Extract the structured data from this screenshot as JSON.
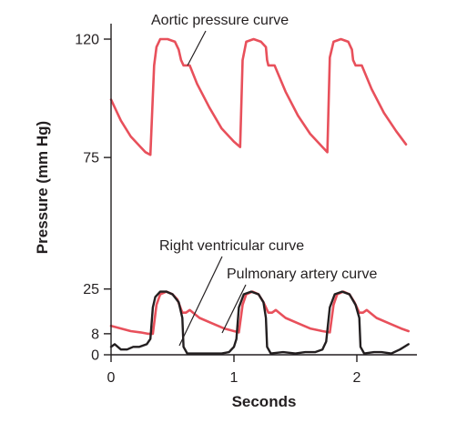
{
  "chart_data": {
    "type": "line",
    "xlabel": "Seconds",
    "ylabel": "Pressure (mm Hg)",
    "xlim": [
      0,
      2.5
    ],
    "ylim": [
      0,
      128
    ],
    "x_ticks": [
      0,
      1,
      2
    ],
    "x_tick_labels": [
      "0",
      "1",
      "2"
    ],
    "y_ticks": [
      0,
      8,
      25,
      75,
      120
    ],
    "y_tick_labels": [
      "0",
      "8",
      "25",
      "75",
      "120"
    ],
    "grid": false,
    "colors": {
      "aortic": "#e8505b",
      "pulmonary": "#e8505b",
      "ventricular": "#231f20",
      "axis": "#231f20"
    },
    "series": [
      {
        "name": "Aortic pressure curve",
        "x": [
          0.0,
          0.08,
          0.16,
          0.24,
          0.28,
          0.32,
          0.35,
          0.37,
          0.4,
          0.46,
          0.52,
          0.55,
          0.57,
          0.59,
          0.62,
          0.64,
          0.7,
          0.8,
          0.9,
          1.0,
          1.05,
          1.07,
          1.1,
          1.16,
          1.22,
          1.26,
          1.27,
          1.28,
          1.31,
          1.33,
          1.42,
          1.52,
          1.62,
          1.72,
          1.76,
          1.78,
          1.81,
          1.87,
          1.93,
          1.96,
          1.97,
          1.99,
          2.02,
          2.04,
          2.12,
          2.22,
          2.32,
          2.4
        ],
        "values": [
          97,
          89,
          83,
          79,
          77,
          76,
          110,
          117,
          120,
          120,
          119,
          116,
          112,
          110,
          110,
          110,
          103,
          94,
          86,
          81,
          79,
          112,
          119,
          120,
          119,
          117,
          112,
          110,
          110,
          110,
          100,
          91,
          84,
          79,
          77,
          113,
          119,
          120,
          119,
          116,
          112,
          110,
          110,
          110,
          101,
          92,
          85,
          80
        ]
      },
      {
        "name": "Pulmonary artery curve",
        "x": [
          0.0,
          0.08,
          0.16,
          0.24,
          0.3,
          0.34,
          0.37,
          0.4,
          0.45,
          0.5,
          0.54,
          0.58,
          0.61,
          0.64,
          0.72,
          0.82,
          0.92,
          1.0,
          1.04,
          1.07,
          1.1,
          1.15,
          1.2,
          1.24,
          1.28,
          1.31,
          1.34,
          1.42,
          1.52,
          1.62,
          1.72,
          1.78,
          1.81,
          1.84,
          1.89,
          1.94,
          1.98,
          2.02,
          2.05,
          2.08,
          2.16,
          2.26,
          2.36,
          2.42
        ],
        "values": [
          11,
          10,
          9,
          8.5,
          8,
          8,
          19,
          23,
          24,
          23,
          21,
          16,
          16,
          17,
          14,
          12,
          10,
          9,
          8.5,
          19,
          23,
          24,
          23,
          20,
          16,
          16,
          17,
          14,
          12,
          10,
          9,
          8.5,
          19,
          23,
          24,
          23,
          20,
          16,
          16,
          17,
          14,
          12,
          10,
          9
        ]
      },
      {
        "name": "Right ventricular curve",
        "x": [
          0.0,
          0.03,
          0.08,
          0.13,
          0.18,
          0.23,
          0.29,
          0.32,
          0.34,
          0.36,
          0.4,
          0.45,
          0.5,
          0.55,
          0.58,
          0.59,
          0.62,
          0.7,
          0.8,
          0.9,
          0.96,
          1.0,
          1.02,
          1.04,
          1.08,
          1.14,
          1.2,
          1.24,
          1.26,
          1.27,
          1.3,
          1.4,
          1.5,
          1.58,
          1.66,
          1.72,
          1.75,
          1.78,
          1.82,
          1.88,
          1.94,
          1.99,
          2.02,
          2.03,
          2.06,
          2.14,
          2.2,
          2.28,
          2.35,
          2.42
        ],
        "values": [
          3,
          4,
          2,
          2,
          3,
          3,
          4,
          6,
          18,
          22,
          24,
          24,
          23,
          20,
          14,
          3,
          0.5,
          0.5,
          0.5,
          0.5,
          1,
          3,
          6,
          18,
          23,
          24,
          23,
          20,
          14,
          3,
          0.5,
          1,
          0.5,
          1,
          1,
          2,
          5,
          18,
          23,
          24,
          23,
          19,
          14,
          3,
          0.5,
          1,
          1,
          0.5,
          2,
          4
        ]
      }
    ],
    "annotations": [
      {
        "text": "Aortic pressure curve",
        "series": 0
      },
      {
        "text": "Right ventricular curve",
        "series": 2
      },
      {
        "text": "Pulmonary artery curve",
        "series": 1
      }
    ]
  }
}
